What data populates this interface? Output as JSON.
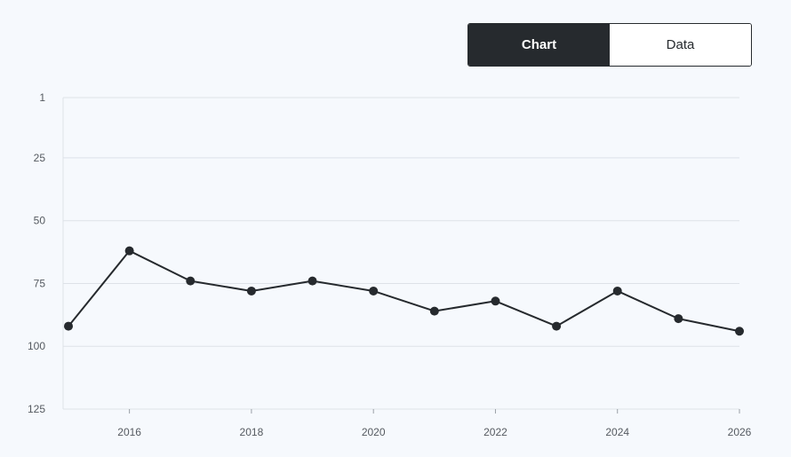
{
  "toggle": {
    "chart_label": "Chart",
    "data_label": "Data",
    "selected": "Chart"
  },
  "colors": {
    "background": "#f6f9fd",
    "line": "#262a2e",
    "grid": "#dde2e8",
    "active_toggle": "#262a2e"
  },
  "chart_data": {
    "type": "line",
    "title": "",
    "xlabel": "",
    "ylabel": "",
    "y_inverted": true,
    "ylim": [
      1,
      125
    ],
    "y_ticks": [
      1,
      25,
      50,
      75,
      100,
      125
    ],
    "xlim": [
      2015,
      2026
    ],
    "x_ticks": [
      2016,
      2018,
      2020,
      2022,
      2024,
      2026
    ],
    "grid": "horizontal",
    "series": [
      {
        "x": [
          2015,
          2016,
          2017,
          2018,
          2019,
          2020,
          2021,
          2022,
          2023,
          2024,
          2025,
          2026
        ],
        "values": [
          92,
          62,
          74,
          78,
          74,
          78,
          86,
          82,
          92,
          78,
          89,
          94
        ]
      }
    ]
  }
}
